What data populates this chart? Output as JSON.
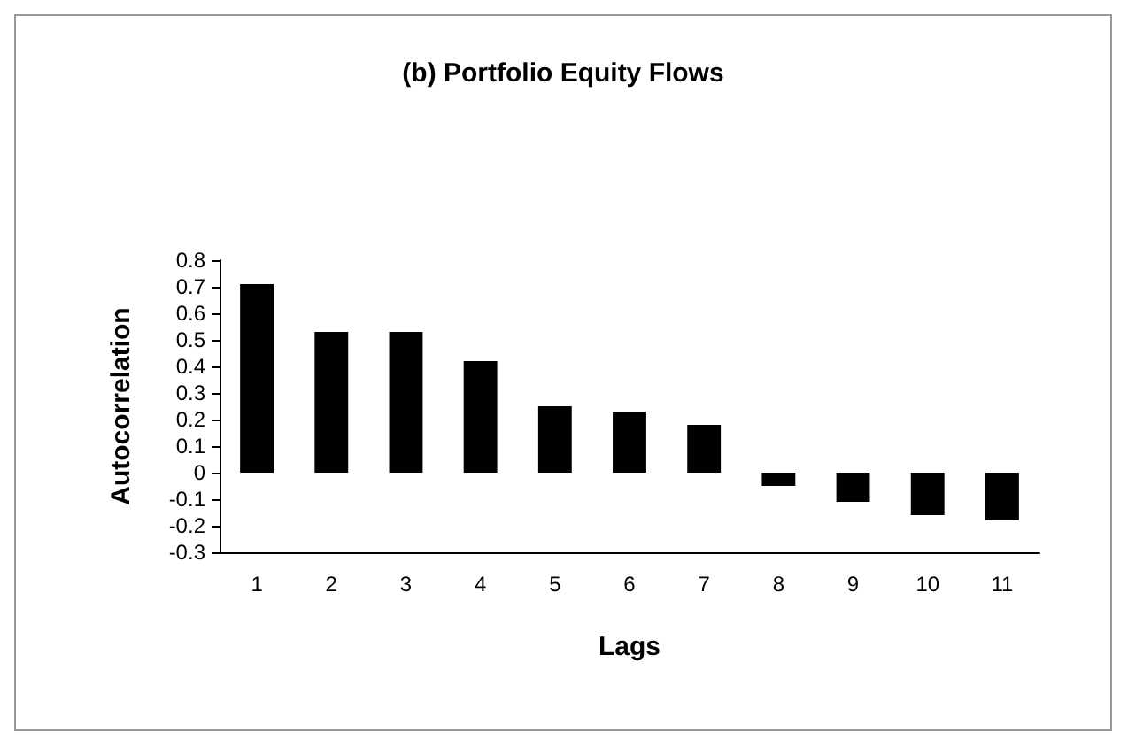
{
  "chart_data": {
    "type": "bar",
    "title": "(b) Portfolio Equity Flows",
    "xlabel": "Lags",
    "ylabel": "Autocorrelation",
    "categories": [
      "1",
      "2",
      "3",
      "4",
      "5",
      "6",
      "7",
      "8",
      "9",
      "10",
      "11"
    ],
    "values": [
      0.71,
      0.53,
      0.53,
      0.42,
      0.25,
      0.23,
      0.18,
      -0.05,
      -0.11,
      -0.16,
      -0.18
    ],
    "color": "#000000",
    "ylim": [
      -0.3,
      0.8
    ],
    "yticks": [
      -0.3,
      -0.2,
      -0.1,
      0,
      0.1,
      0.2,
      0.3,
      0.4,
      0.5,
      0.6,
      0.7,
      0.8
    ],
    "grid": false
  }
}
